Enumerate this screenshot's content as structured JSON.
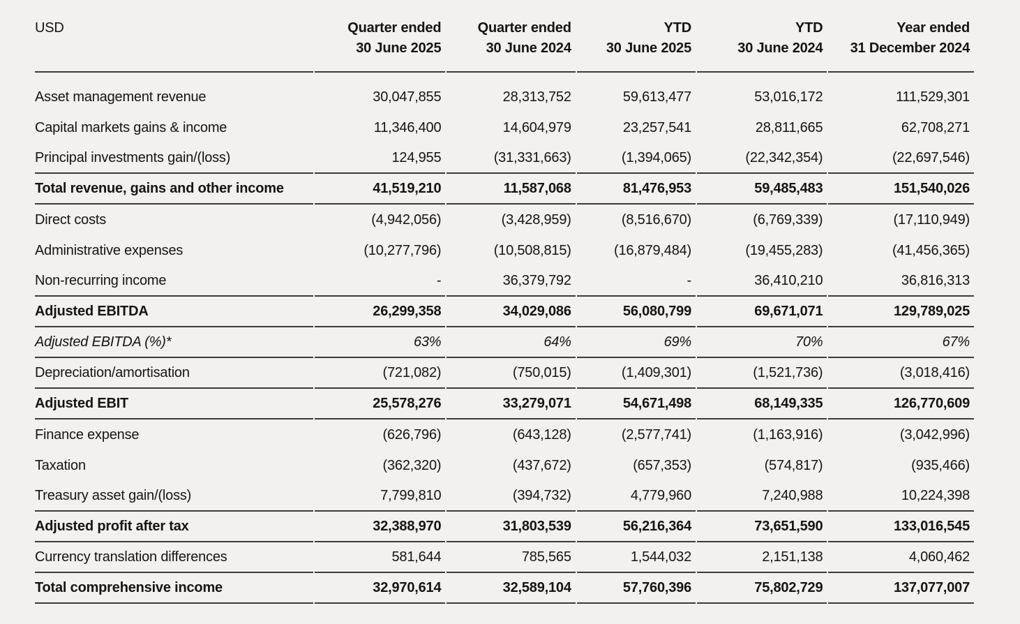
{
  "colors": {
    "background": "#f2f1ef",
    "text": "#141414",
    "rule": "#3b3b3b"
  },
  "table": {
    "unit_label": "USD",
    "columns": [
      {
        "line1": "Quarter ended",
        "line2": "30 June 2025"
      },
      {
        "line1": "Quarter ended",
        "line2": "30 June 2024"
      },
      {
        "line1": "YTD",
        "line2": "30 June 2025"
      },
      {
        "line1": "YTD",
        "line2": "30 June 2024"
      },
      {
        "line1": "Year ended",
        "line2": "31 December 2024"
      }
    ],
    "rows": [
      {
        "label": "Asset management revenue",
        "values": [
          "30,047,855",
          "28,313,752",
          "59,613,477",
          "53,016,172",
          "111,529,301"
        ],
        "style": "regular",
        "rule_below": false
      },
      {
        "label": "Capital markets gains & income",
        "values": [
          "11,346,400",
          "14,604,979",
          "23,257,541",
          "28,811,665",
          "62,708,271"
        ],
        "style": "regular",
        "rule_below": false
      },
      {
        "label": "Principal investments gain/(loss)",
        "values": [
          "124,955",
          "(31,331,663)",
          "(1,394,065)",
          "(22,342,354)",
          "(22,697,546)"
        ],
        "style": "regular",
        "rule_below": true
      },
      {
        "label": "Total revenue, gains and other income",
        "values": [
          "41,519,210",
          "11,587,068",
          "81,476,953",
          "59,485,483",
          "151,540,026"
        ],
        "style": "bold",
        "rule_below": true
      },
      {
        "label": "Direct costs",
        "values": [
          "(4,942,056)",
          "(3,428,959)",
          "(8,516,670)",
          "(6,769,339)",
          "(17,110,949)"
        ],
        "style": "regular",
        "rule_below": false
      },
      {
        "label": "Administrative expenses",
        "values": [
          "(10,277,796)",
          "(10,508,815)",
          "(16,879,484)",
          "(19,455,283)",
          "(41,456,365)"
        ],
        "style": "regular",
        "rule_below": false
      },
      {
        "label": "Non-recurring income",
        "values": [
          "-",
          "36,379,792",
          "-",
          "36,410,210",
          "36,816,313"
        ],
        "style": "regular",
        "rule_below": true
      },
      {
        "label": "Adjusted EBITDA",
        "values": [
          "26,299,358",
          "34,029,086",
          "56,080,799",
          "69,671,071",
          "129,789,025"
        ],
        "style": "bold",
        "rule_below": true
      },
      {
        "label": "Adjusted EBITDA (%)*",
        "values": [
          "63%",
          "64%",
          "69%",
          "70%",
          "67%"
        ],
        "style": "italic",
        "rule_below": true
      },
      {
        "label": "Depreciation/amortisation",
        "values": [
          "(721,082)",
          "(750,015)",
          "(1,409,301)",
          "(1,521,736)",
          "(3,018,416)"
        ],
        "style": "regular",
        "rule_below": true
      },
      {
        "label": "Adjusted EBIT",
        "values": [
          "25,578,276",
          "33,279,071",
          "54,671,498",
          "68,149,335",
          "126,770,609"
        ],
        "style": "bold",
        "rule_below": true
      },
      {
        "label": "Finance expense",
        "values": [
          "(626,796)",
          "(643,128)",
          "(2,577,741)",
          "(1,163,916)",
          "(3,042,996)"
        ],
        "style": "regular",
        "rule_below": false
      },
      {
        "label": "Taxation",
        "values": [
          "(362,320)",
          "(437,672)",
          "(657,353)",
          "(574,817)",
          "(935,466)"
        ],
        "style": "regular",
        "rule_below": false
      },
      {
        "label": "Treasury asset gain/(loss)",
        "values": [
          "7,799,810",
          "(394,732)",
          "4,779,960",
          "7,240,988",
          "10,224,398"
        ],
        "style": "regular",
        "rule_below": true
      },
      {
        "label": "Adjusted profit after tax",
        "values": [
          "32,388,970",
          "31,803,539",
          "56,216,364",
          "73,651,590",
          "133,016,545"
        ],
        "style": "bold",
        "rule_below": true
      },
      {
        "label": "Currency translation differences",
        "values": [
          "581,644",
          "785,565",
          "1,544,032",
          "2,151,138",
          "4,060,462"
        ],
        "style": "regular",
        "rule_below": true
      },
      {
        "label": "Total comprehensive income",
        "values": [
          "32,970,614",
          "32,589,104",
          "57,760,396",
          "75,802,729",
          "137,077,007"
        ],
        "style": "bold",
        "rule_below": true
      }
    ]
  }
}
